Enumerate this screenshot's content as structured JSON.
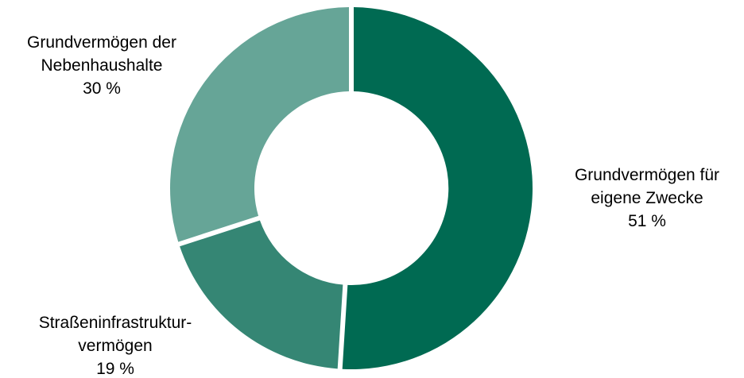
{
  "chart_data": {
    "type": "pie",
    "variant": "donut",
    "title": "",
    "slices": [
      {
        "label_lines": [
          "Grundvermögen für",
          "eigene Zwecke"
        ],
        "value": 51,
        "value_label": "51 %",
        "color": "#006A52"
      },
      {
        "label_lines": [
          "Straßeninfrastruktur-",
          "vermögen"
        ],
        "value": 19,
        "value_label": "19 %",
        "color": "#358674"
      },
      {
        "label_lines": [
          "Grundvermögen der",
          "Nebenhaushalte"
        ],
        "value": 30,
        "value_label": "30 %",
        "color": "#66A597"
      }
    ],
    "legend": "none",
    "start_angle_deg": 0,
    "direction": "clockwise"
  }
}
